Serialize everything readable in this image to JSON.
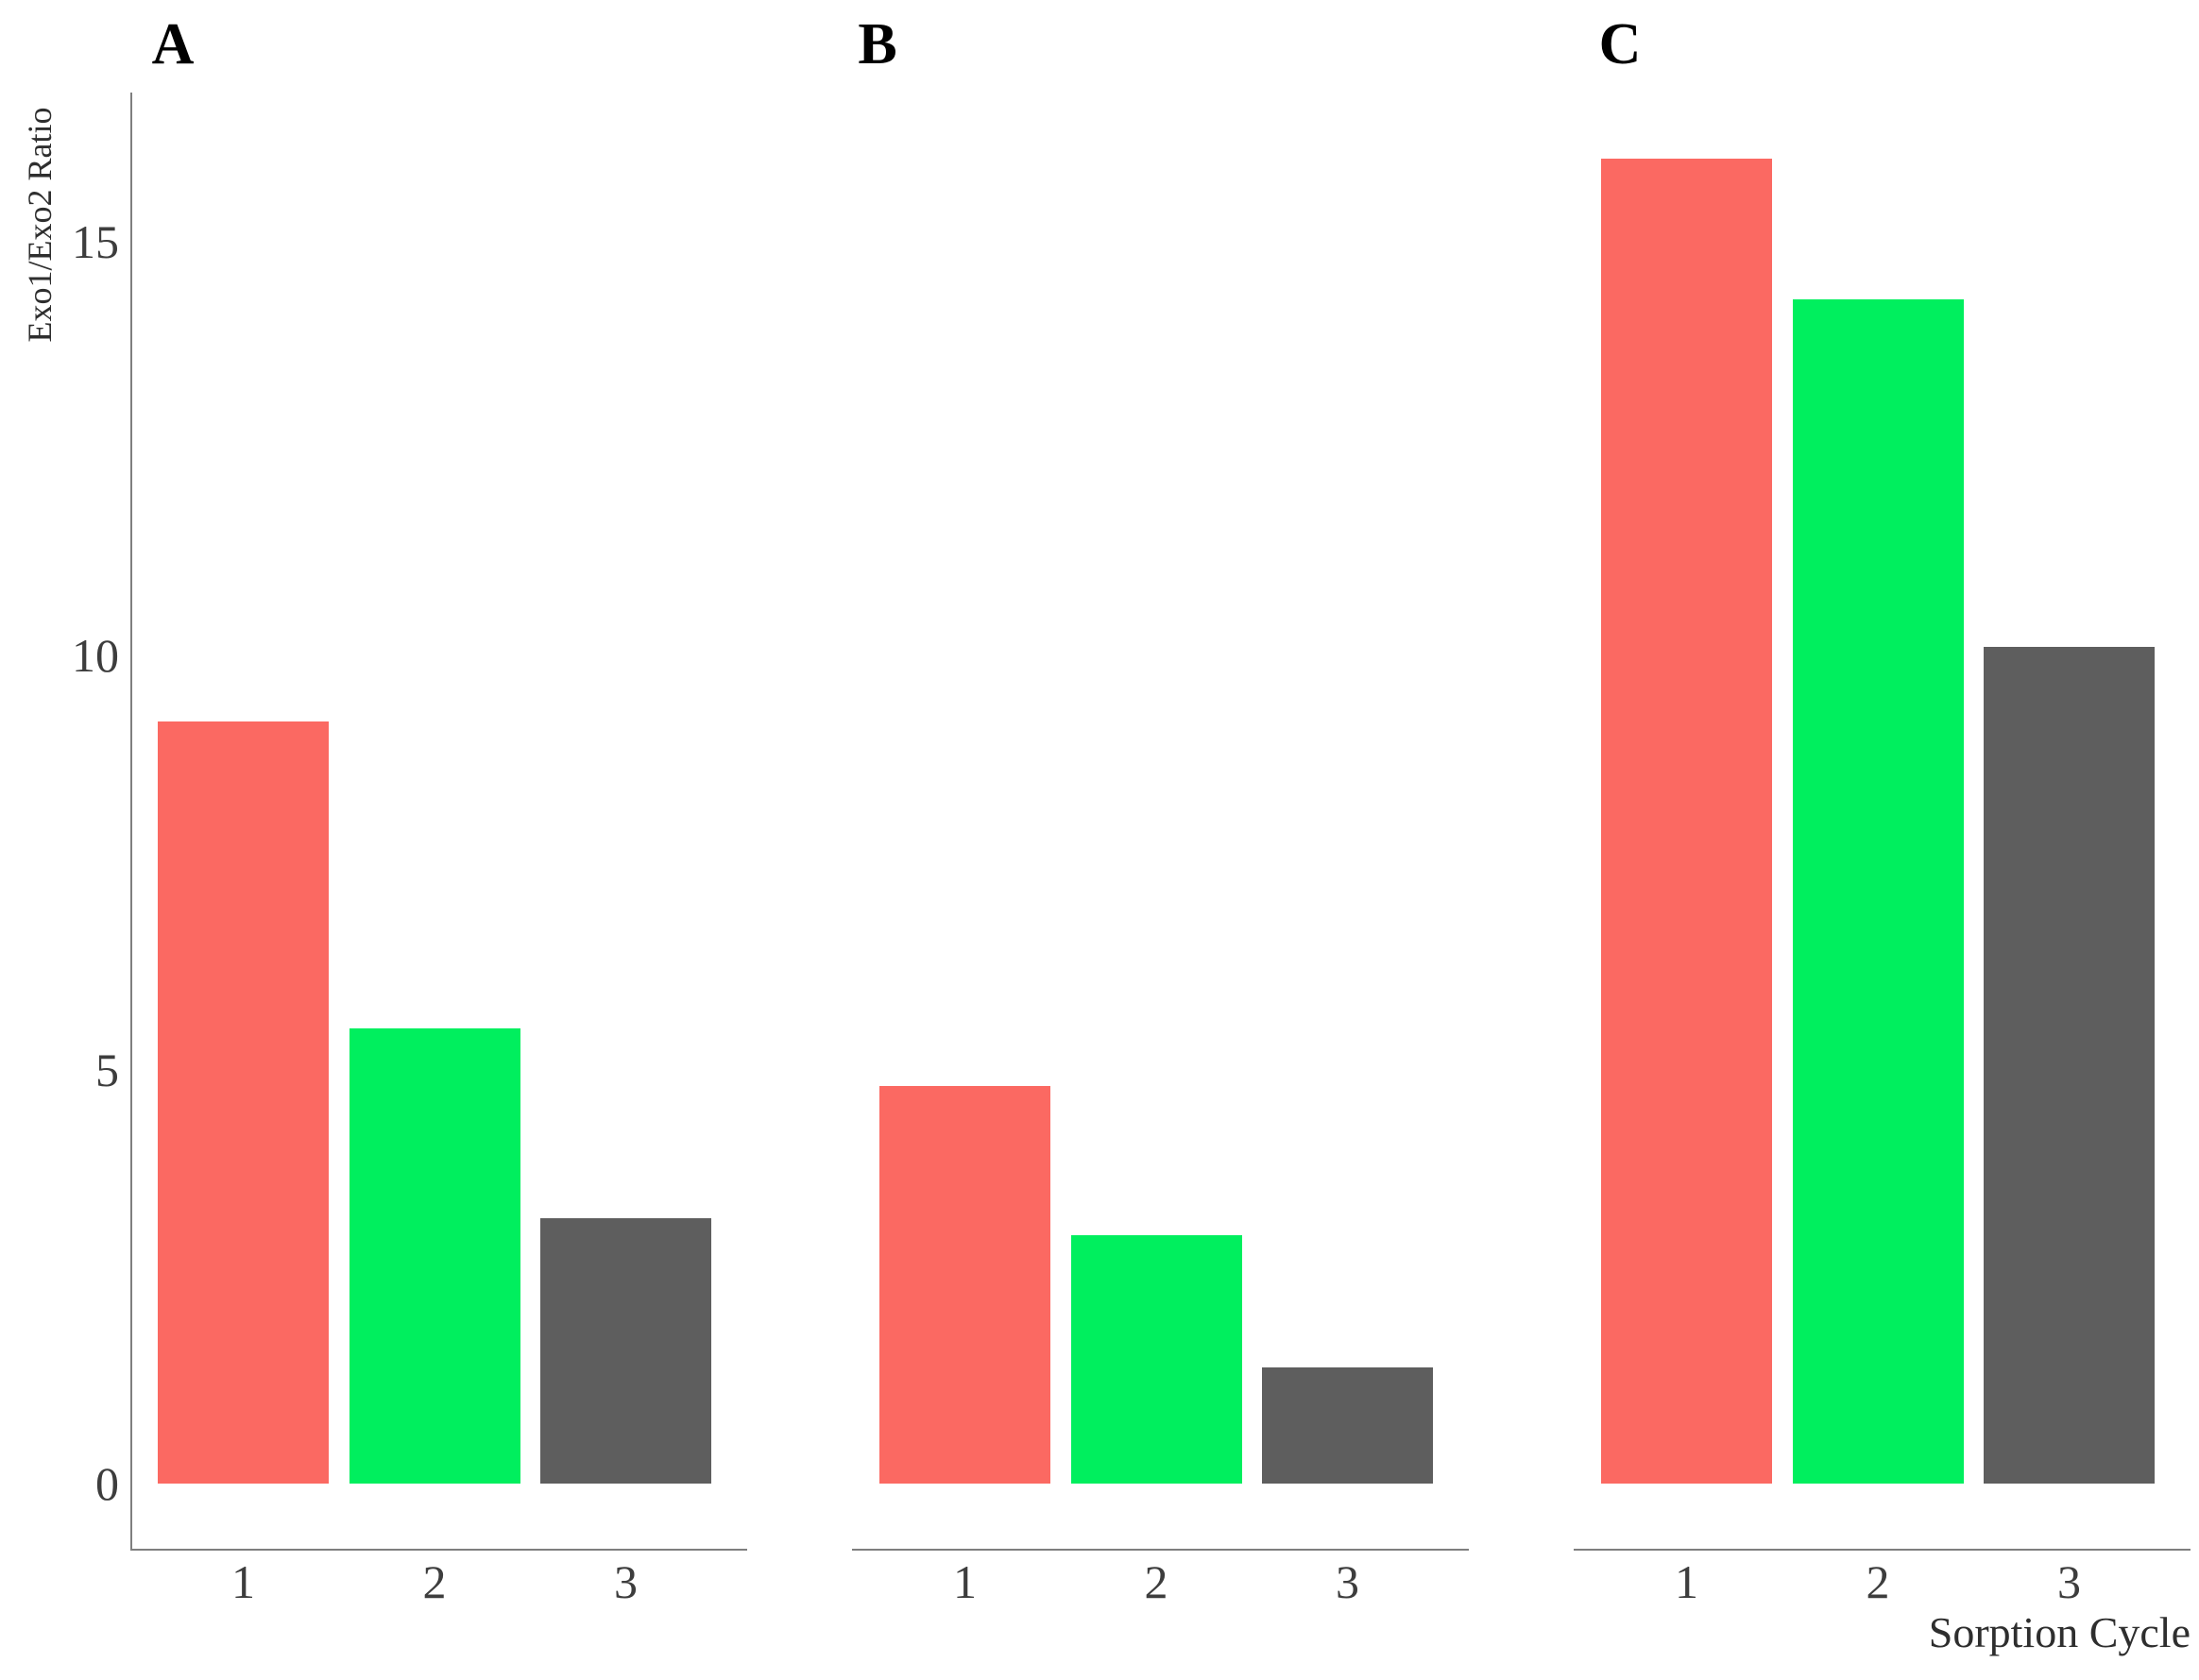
{
  "figure": {
    "ylabel": "Exo1/Exo2 Ratio",
    "xlabel": "Sorption Cycle",
    "background": "#ffffff"
  },
  "chart_data": [
    {
      "type": "bar",
      "panel_label": "A",
      "categories": [
        "1",
        "2",
        "3"
      ],
      "values": [
        9.2,
        5.5,
        3.2
      ],
      "bar_colors": [
        "#fb6962",
        "#00ef5e",
        "#5e5e5e"
      ],
      "ylabel": "Exo1/Exo2 Ratio",
      "xlabel": "Sorption Cycle",
      "ylim": [
        0,
        16.8
      ],
      "yticks": [
        0,
        5,
        10,
        15
      ],
      "grid": false,
      "legend": false
    },
    {
      "type": "bar",
      "panel_label": "B",
      "categories": [
        "1",
        "2",
        "3"
      ],
      "values": [
        4.8,
        3.0,
        1.4
      ],
      "bar_colors": [
        "#fb6962",
        "#00ef5e",
        "#5e5e5e"
      ],
      "yticks": [],
      "grid": false,
      "legend": false
    },
    {
      "type": "bar",
      "panel_label": "C",
      "categories": [
        "1",
        "2",
        "3"
      ],
      "values": [
        16.0,
        14.3,
        10.1
      ],
      "bar_colors": [
        "#fb6962",
        "#00ef5e",
        "#5e5e5e"
      ],
      "yticks": [],
      "grid": false,
      "legend": false
    }
  ],
  "colors": {
    "axis_line": "#7f7f7f",
    "tick_text": "#3d3d3d",
    "panel_label_text": "#000000",
    "bar_red": "#fb6962",
    "bar_green": "#00ef5e",
    "bar_gray": "#5e5e5e"
  }
}
